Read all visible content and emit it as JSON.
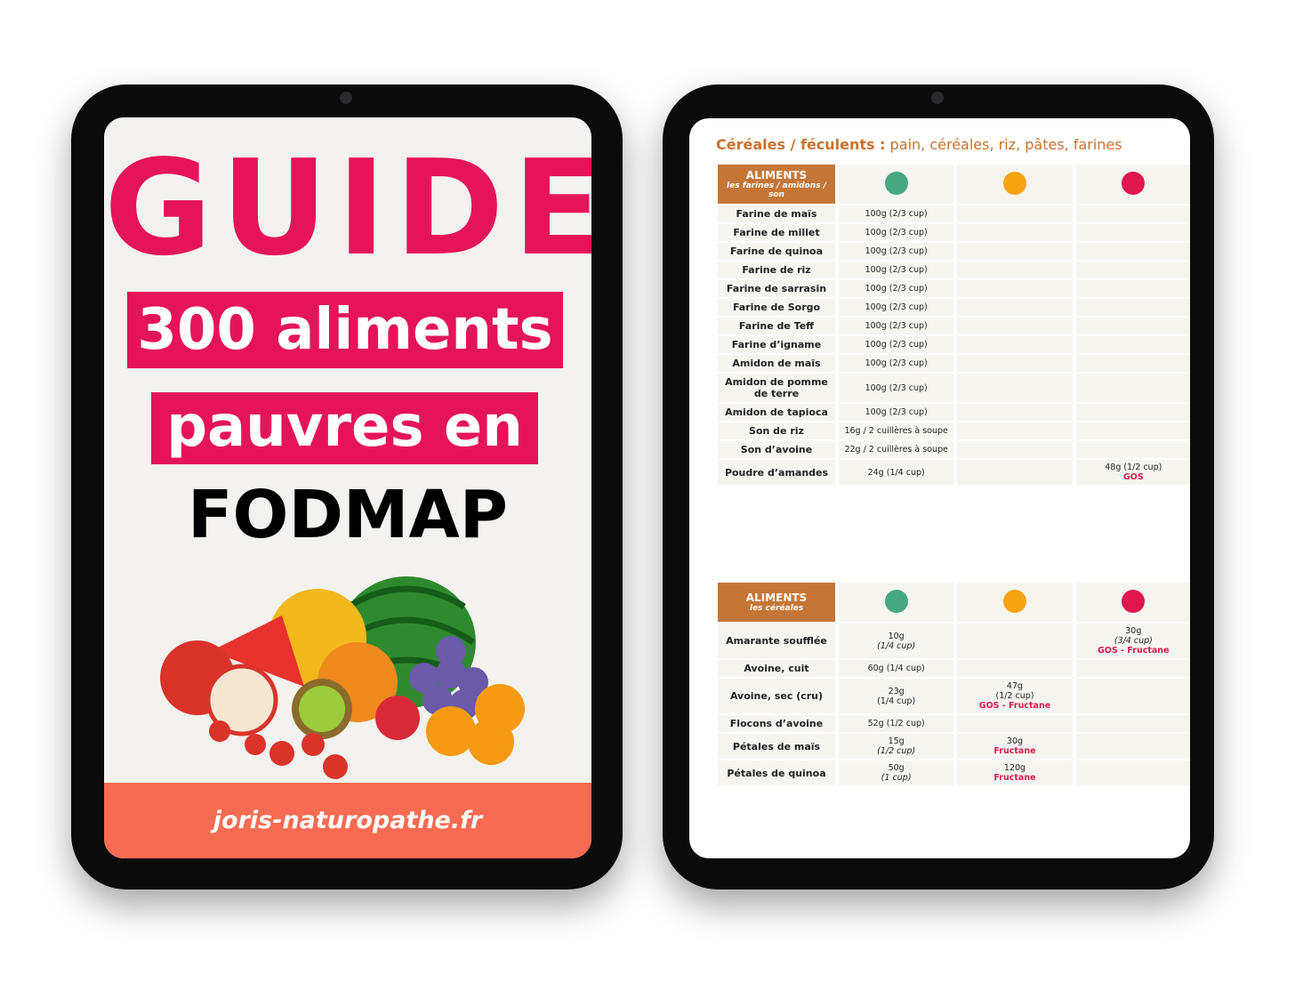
{
  "cover": {
    "title": "GUIDE",
    "line1": "300 aliments",
    "line2": "pauvres en",
    "line3": "FODMAP",
    "footer": "joris-naturopathe.fr"
  },
  "page": {
    "heading_bold": "Céréales / féculents :",
    "heading_rest": " pain, céréales, riz, pâtes, farines",
    "dot_colors": {
      "low": "#45a87e",
      "medium": "#f7a312",
      "high": "#e0174f"
    },
    "tables": [
      {
        "label": "ALIMENTS",
        "sublabel": "les farines / amidons / son",
        "rows": [
          {
            "name": "Farine de maïs",
            "low": {
              "amount": "100g (2/3 cup)"
            }
          },
          {
            "name": "Farine de millet",
            "low": {
              "amount": "100g (2/3 cup)"
            }
          },
          {
            "name": "Farine de quinoa",
            "low": {
              "amount": "100g (2/3 cup)"
            }
          },
          {
            "name": "Farine de riz",
            "low": {
              "amount": "100g (2/3 cup)"
            }
          },
          {
            "name": "Farine de sarrasin",
            "low": {
              "amount": "100g (2/3 cup)"
            }
          },
          {
            "name": "Farine de Sorgo",
            "low": {
              "amount": "100g (2/3 cup)"
            }
          },
          {
            "name": "Farine de Teff",
            "low": {
              "amount": "100g (2/3 cup)"
            }
          },
          {
            "name": "Farine d’igname",
            "low": {
              "amount": "100g (2/3 cup)"
            }
          },
          {
            "name": "Amidon de maïs",
            "low": {
              "amount": "100g (2/3 cup)"
            }
          },
          {
            "name": "Amidon de pomme de terre",
            "low": {
              "amount": "100g (2/3 cup)"
            }
          },
          {
            "name": "Amidon de tapioca",
            "low": {
              "amount": "100g (2/3 cup)"
            }
          },
          {
            "name": "Son de riz",
            "low": {
              "amount": "16g / 2 cuillères à soupe"
            }
          },
          {
            "name": "Son d’avoine",
            "low": {
              "amount": "22g / 2 cuillères à soupe"
            }
          },
          {
            "name": "Poudre d’amandes",
            "low": {
              "amount": "24g (1/4 cup)"
            },
            "high": {
              "amount": "48g (1/2 cup)",
              "fodmap": "GOS"
            }
          }
        ]
      },
      {
        "label": "ALIMENTS",
        "sublabel": "les céréales",
        "rows": [
          {
            "name": "Amarante soufflée",
            "low": {
              "amount": "10g",
              "portion": "(1/4 cup)",
              "italic": true
            },
            "high": {
              "amount": "30g",
              "portion": "(3/4 cup)",
              "italic": true,
              "fodmap": "GOS - Fructane"
            }
          },
          {
            "name": "Avoine, cuit",
            "low": {
              "amount": "60g (1/4 cup)"
            }
          },
          {
            "name": "Avoine, sec (cru)",
            "low": {
              "amount": "23g",
              "portion": "(1/4 cup)"
            },
            "medium": {
              "amount": "47g",
              "portion": "(1/2 cup)",
              "fodmap": "GOS - Fructane"
            }
          },
          {
            "name": "Flocons d’avoine",
            "low": {
              "amount": "52g  (1/2 cup)"
            }
          },
          {
            "name": "Pétales de maïs",
            "low": {
              "amount": "15g",
              "portion": "(1/2 cup)",
              "italic": true
            },
            "medium": {
              "amount": "30g",
              "fodmap": "Fructane"
            }
          },
          {
            "name": "Pétales de quinoa",
            "low": {
              "amount": "50g",
              "portion": "(1 cup)",
              "italic": true
            },
            "medium": {
              "amount": "120g",
              "fodmap": "Fructane"
            }
          }
        ]
      }
    ]
  }
}
